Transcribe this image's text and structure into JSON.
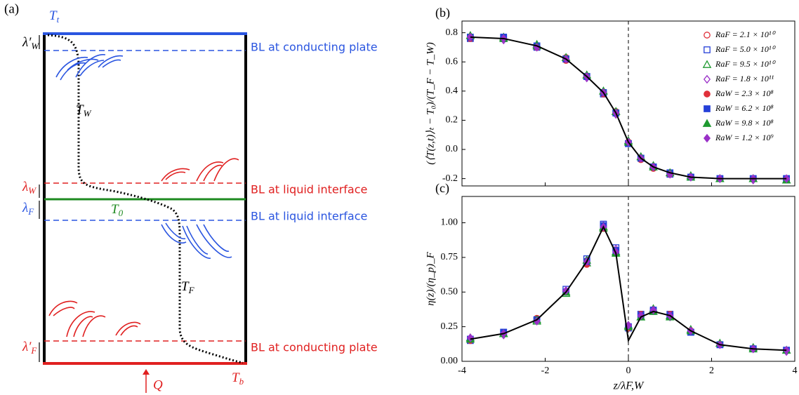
{
  "diagram": {
    "panel": "(a)",
    "labels": [
      {
        "main": "T",
        "sub": "t"
      },
      {
        "main": "λ′",
        "sub": "W"
      },
      {
        "main": "BL at conducting plate"
      },
      {
        "main": "T",
        "sub": "W"
      },
      {
        "main": "λ",
        "sub": "W"
      },
      {
        "main": "BL at liquid interface"
      },
      {
        "main": "λ",
        "sub": "F"
      },
      {
        "main": "T",
        "sub": "0"
      },
      {
        "main": "BL at liquid interface"
      },
      {
        "main": "T",
        "sub": "F"
      },
      {
        "main": "λ′",
        "sub": "F"
      },
      {
        "main": "BL at conducting plate"
      },
      {
        "main": "Q"
      },
      {
        "main": "T",
        "sub": "b"
      }
    ]
  },
  "chart_data": [
    {
      "type": "scatter",
      "panel": "(b)",
      "ylabel": "(⟨T(z,t)⟩ₜ − T₀)/(T_F − T_W)",
      "xlim": [
        -4,
        4
      ],
      "xticks": [
        -4,
        -2,
        0,
        2,
        4
      ],
      "show_xtick_labels": false,
      "ylim": [
        -0.25,
        0.88
      ],
      "yticks": [
        -0.2,
        {
          "value": 0,
          "label": "0.0"
        },
        0.2,
        0.4,
        0.6,
        0.8
      ],
      "vline": 0,
      "legend": "upper right",
      "x": [
        -3.8,
        -3,
        -2.2,
        -1.5,
        -1,
        -0.6,
        -0.3,
        0,
        0.3,
        0.6,
        1,
        1.5,
        2.2,
        3,
        3.8
      ],
      "fit": [
        0.77,
        0.76,
        0.71,
        0.62,
        0.5,
        0.39,
        0.25,
        0.05,
        -0.06,
        -0.12,
        -0.16,
        -0.19,
        -0.2,
        -0.2,
        -0.2
      ],
      "series": [
        {
          "name": "RaF = 2.1 × 10¹⁰",
          "color": "#e0303a",
          "marker": "circle",
          "filled": false,
          "values": [
            0.77,
            0.76,
            0.71,
            0.63,
            0.5,
            0.39,
            0.26,
            0.05,
            -0.06,
            -0.12,
            -0.16,
            -0.19,
            -0.2,
            -0.2,
            -0.2
          ]
        },
        {
          "name": "RaF = 5.0 × 10¹⁰",
          "color": "#2540d8",
          "marker": "square",
          "filled": false,
          "values": [
            0.76,
            0.76,
            0.7,
            0.62,
            0.5,
            0.38,
            0.25,
            0.04,
            -0.06,
            -0.12,
            -0.17,
            -0.19,
            -0.2,
            -0.2,
            -0.2
          ]
        },
        {
          "name": "RaF = 9.5 × 10¹⁰",
          "color": "#1e9a30",
          "marker": "triangle",
          "filled": false,
          "values": [
            0.78,
            0.77,
            0.72,
            0.63,
            0.51,
            0.4,
            0.26,
            0.06,
            -0.05,
            -0.11,
            -0.16,
            -0.18,
            -0.2,
            -0.2,
            -0.21
          ]
        },
        {
          "name": "RaF = 1.8 × 10¹¹",
          "color": "#9a30c8",
          "marker": "diamond",
          "filled": false,
          "values": [
            0.77,
            0.75,
            0.71,
            0.62,
            0.49,
            0.39,
            0.24,
            0.05,
            -0.06,
            -0.12,
            -0.16,
            -0.19,
            -0.2,
            -0.21,
            -0.2
          ]
        },
        {
          "name": "RaW = 2.3 × 10⁸",
          "color": "#e0303a",
          "marker": "circle",
          "filled": true,
          "values": [
            0.76,
            0.76,
            0.7,
            0.61,
            0.5,
            0.38,
            0.25,
            0.05,
            -0.07,
            -0.13,
            -0.17,
            -0.19,
            -0.2,
            -0.2,
            -0.2
          ]
        },
        {
          "name": "RaW = 6.2 × 10⁸",
          "color": "#2540d8",
          "marker": "square",
          "filled": true,
          "values": [
            0.77,
            0.77,
            0.71,
            0.62,
            0.5,
            0.39,
            0.25,
            0.04,
            -0.06,
            -0.12,
            -0.16,
            -0.19,
            -0.2,
            -0.2,
            -0.2
          ]
        },
        {
          "name": "RaW = 9.8 × 10⁸",
          "color": "#1e9a30",
          "marker": "triangle",
          "filled": true,
          "values": [
            0.78,
            0.76,
            0.71,
            0.63,
            0.51,
            0.4,
            0.26,
            0.05,
            -0.05,
            -0.12,
            -0.16,
            -0.19,
            -0.2,
            -0.2,
            -0.21
          ]
        },
        {
          "name": "RaW = 1.2 × 10⁹",
          "color": "#9a30c8",
          "marker": "diamond",
          "filled": true,
          "values": [
            0.77,
            0.76,
            0.7,
            0.62,
            0.5,
            0.39,
            0.25,
            0.05,
            -0.06,
            -0.12,
            -0.17,
            -0.19,
            -0.2,
            -0.2,
            -0.2
          ]
        }
      ]
    },
    {
      "type": "scatter",
      "panel": "(c)",
      "ylabel": "η(z)/(η_p)_F",
      "xlabel": "z/λF,W",
      "xlim": [
        -4,
        4
      ],
      "xticks": [
        -4,
        -2,
        0,
        2,
        4
      ],
      "show_xtick_labels": true,
      "ylim": [
        0,
        1.19
      ],
      "yticks": [
        {
          "value": 0,
          "label": "0.00"
        },
        {
          "value": 0.25,
          "label": "0.25"
        },
        {
          "value": 0.5,
          "label": "0.50"
        },
        {
          "value": 0.75,
          "label": "0.75"
        },
        {
          "value": 1,
          "label": "1.00"
        }
      ],
      "vline": 0,
      "x": [
        -3.8,
        -3,
        -2.2,
        -1.5,
        -1,
        -0.6,
        -0.3,
        0,
        0.3,
        0.6,
        1,
        1.5,
        2.2,
        3,
        3.8
      ],
      "fit": [
        0.16,
        0.2,
        0.3,
        0.5,
        0.72,
        0.97,
        0.78,
        0.15,
        0.32,
        0.36,
        0.33,
        0.22,
        0.12,
        0.09,
        0.08
      ],
      "series": [
        {
          "color": "#e0303a",
          "marker": "circle",
          "filled": false,
          "values": [
            0.16,
            0.2,
            0.31,
            0.5,
            0.72,
            0.97,
            0.8,
            0.25,
            0.33,
            0.37,
            0.33,
            0.22,
            0.12,
            0.09,
            0.08
          ]
        },
        {
          "color": "#2540d8",
          "marker": "square",
          "filled": false,
          "values": [
            0.15,
            0.21,
            0.3,
            0.52,
            0.74,
            0.99,
            0.82,
            0.24,
            0.34,
            0.36,
            0.34,
            0.21,
            0.12,
            0.09,
            0.08
          ]
        },
        {
          "color": "#1e9a30",
          "marker": "triangle",
          "filled": false,
          "values": [
            0.17,
            0.2,
            0.29,
            0.49,
            0.71,
            0.96,
            0.79,
            0.26,
            0.32,
            0.38,
            0.33,
            0.23,
            0.13,
            0.1,
            0.08
          ]
        },
        {
          "color": "#9a30c8",
          "marker": "diamond",
          "filled": false,
          "values": [
            0.16,
            0.19,
            0.3,
            0.51,
            0.73,
            0.98,
            0.81,
            0.25,
            0.33,
            0.37,
            0.32,
            0.22,
            0.12,
            0.09,
            0.07
          ]
        },
        {
          "color": "#e0303a",
          "marker": "circle",
          "filled": true,
          "values": [
            0.15,
            0.2,
            0.31,
            0.5,
            0.7,
            0.96,
            0.8,
            0.24,
            0.34,
            0.36,
            0.34,
            0.22,
            0.12,
            0.09,
            0.08
          ]
        },
        {
          "color": "#2540d8",
          "marker": "square",
          "filled": true,
          "values": [
            0.16,
            0.21,
            0.3,
            0.5,
            0.72,
            0.98,
            0.8,
            0.25,
            0.33,
            0.37,
            0.33,
            0.21,
            0.12,
            0.09,
            0.08
          ]
        },
        {
          "color": "#1e9a30",
          "marker": "triangle",
          "filled": true,
          "values": [
            0.16,
            0.2,
            0.3,
            0.5,
            0.73,
            0.97,
            0.78,
            0.25,
            0.32,
            0.36,
            0.32,
            0.22,
            0.13,
            0.09,
            0.08
          ]
        },
        {
          "color": "#9a30c8",
          "marker": "diamond",
          "filled": true,
          "values": [
            0.17,
            0.2,
            0.29,
            0.51,
            0.72,
            0.97,
            0.79,
            0.26,
            0.33,
            0.37,
            0.33,
            0.22,
            0.12,
            0.09,
            0.08
          ]
        }
      ]
    }
  ]
}
